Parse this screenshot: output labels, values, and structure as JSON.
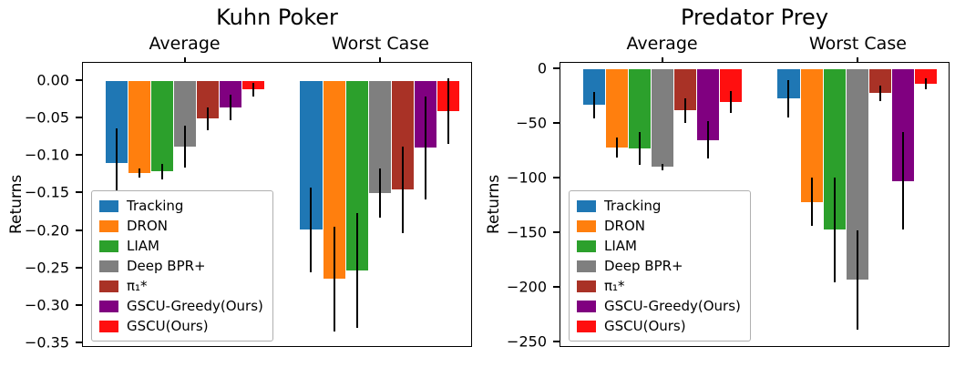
{
  "chart_data": [
    {
      "type": "bar",
      "title": "Kuhn Poker",
      "ylabel": "Returns",
      "groups": [
        "Average",
        "Worst Case"
      ],
      "group_centers": [
        0.263,
        0.765
      ],
      "bar_slot_width": 0.059,
      "ylim": [
        -0.356,
        0.024
      ],
      "yticks": [
        0,
        -0.05,
        -0.1,
        -0.15,
        -0.2,
        -0.25,
        -0.3,
        -0.35
      ],
      "ytick_labels": [
        "0.00",
        "−0.05",
        "−0.10",
        "−0.15",
        "−0.20",
        "−0.25",
        "−0.30",
        "−0.35"
      ],
      "legend_position": "lower left",
      "grid": false,
      "series": [
        {
          "name": "Tracking",
          "color": "#1f77b4",
          "values": [
            -0.11,
            -0.2
          ],
          "errors": [
            0.046,
            0.057
          ]
        },
        {
          "name": "DRON",
          "color": "#ff7f0e",
          "values": [
            -0.124,
            -0.266
          ],
          "errors": [
            0.006,
            0.07
          ]
        },
        {
          "name": "LIAM",
          "color": "#2ca02c",
          "values": [
            -0.122,
            -0.255
          ],
          "errors": [
            0.01,
            0.077
          ]
        },
        {
          "name": "Deep BPR+",
          "color": "#7f7f7f",
          "values": [
            -0.088,
            -0.151
          ],
          "errors": [
            0.028,
            0.033
          ]
        },
        {
          "name": "π₁*",
          "color": "#a93226",
          "values": [
            -0.051,
            -0.146
          ],
          "errors": [
            0.015,
            0.058
          ]
        },
        {
          "name": "GSCU-Greedy(Ours)",
          "color": "#800080",
          "values": [
            -0.036,
            -0.09
          ],
          "errors": [
            0.017,
            0.069
          ]
        },
        {
          "name": "GSCU(Ours)",
          "color": "#ff0f0f",
          "values": [
            -0.012,
            -0.041
          ],
          "errors": [
            0.009,
            0.044
          ]
        }
      ]
    },
    {
      "type": "bar",
      "title": "Predator Prey",
      "ylabel": "Returns",
      "groups": [
        "Average",
        "Worst Case"
      ],
      "group_centers": [
        0.263,
        0.765
      ],
      "bar_slot_width": 0.059,
      "ylim": [
        -255,
        6
      ],
      "yticks": [
        0,
        -50,
        -100,
        -150,
        -200,
        -250
      ],
      "ytick_labels": [
        "0",
        "−50",
        "−100",
        "−150",
        "−200",
        "−250"
      ],
      "legend_position": "lower left",
      "grid": false,
      "series": [
        {
          "name": "Tracking",
          "color": "#1f77b4",
          "values": [
            -33,
            -27
          ],
          "errors": [
            12,
            17
          ]
        },
        {
          "name": "DRON",
          "color": "#ff7f0e",
          "values": [
            -72,
            -122
          ],
          "errors": [
            9,
            22
          ]
        },
        {
          "name": "LIAM",
          "color": "#2ca02c",
          "values": [
            -73,
            -148
          ],
          "errors": [
            15,
            48
          ]
        },
        {
          "name": "Deep BPR+",
          "color": "#7f7f7f",
          "values": [
            -90,
            -194
          ],
          "errors": [
            3,
            46
          ]
        },
        {
          "name": "π₁*",
          "color": "#a93226",
          "values": [
            -38,
            -22
          ],
          "errors": [
            11,
            7
          ]
        },
        {
          "name": "GSCU-Greedy(Ours)",
          "color": "#800080",
          "values": [
            -65,
            -103
          ],
          "errors": [
            17,
            45
          ]
        },
        {
          "name": "GSCU(Ours)",
          "color": "#ff0f0f",
          "values": [
            -30,
            -13
          ],
          "errors": [
            10,
            5
          ]
        }
      ]
    }
  ]
}
